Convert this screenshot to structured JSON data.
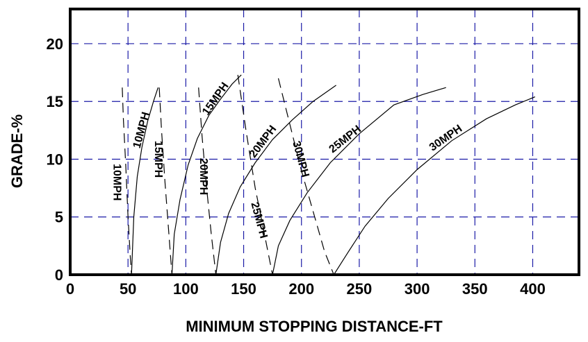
{
  "chart_data": {
    "type": "line",
    "title": "",
    "xlabel": "MINIMUM STOPPING DISTANCE-FT",
    "ylabel": "GRADE-%",
    "xlim": [
      0,
      440
    ],
    "ylim": [
      0,
      23
    ],
    "xticks": [
      0,
      50,
      100,
      150,
      200,
      250,
      300,
      350,
      400
    ],
    "yticks": [
      0,
      5,
      10,
      15,
      20
    ],
    "grid": true,
    "series": [
      {
        "name": "10MPH",
        "style": "dashed",
        "label_at": [
          40,
          8
        ],
        "label_angle": 90,
        "x": [
          45,
          46,
          48,
          50,
          52,
          53
        ],
        "y": [
          16.2,
          13.5,
          9.5,
          5,
          1.5,
          0
        ]
      },
      {
        "name": "10MPH",
        "style": "solid",
        "label_at": [
          62,
          12.5
        ],
        "label_angle": -75,
        "x": [
          53,
          55,
          58,
          62,
          67,
          72,
          76
        ],
        "y": [
          0,
          5,
          8.5,
          11,
          13.3,
          15,
          16.2
        ]
      },
      {
        "name": "15MPH",
        "style": "dashed",
        "label_at": [
          76,
          10
        ],
        "label_angle": 90,
        "x": [
          77,
          79,
          82,
          85,
          88
        ],
        "y": [
          16.2,
          12.5,
          8,
          4,
          0
        ]
      },
      {
        "name": "15MPH",
        "style": "solid",
        "label_at": [
          126,
          15.2
        ],
        "label_angle": -55,
        "x": [
          88,
          90,
          95,
          102,
          110,
          120,
          130,
          140,
          148
        ],
        "y": [
          0,
          3.5,
          6.5,
          9.5,
          11.8,
          13.8,
          15.2,
          16.5,
          17.3
        ]
      },
      {
        "name": "20MPH",
        "style": "dashed",
        "label_at": [
          115,
          8.5
        ],
        "label_angle": 90,
        "x": [
          111,
          114,
          118,
          122,
          126
        ],
        "y": [
          16.2,
          12,
          7.5,
          3.5,
          0
        ]
      },
      {
        "name": "20MPH",
        "style": "solid",
        "label_at": [
          167,
          11.5
        ],
        "label_angle": -53,
        "x": [
          126,
          130,
          137,
          147,
          160,
          175,
          192,
          210,
          230
        ],
        "y": [
          0,
          2.8,
          5.3,
          7.6,
          9.7,
          11.7,
          13.4,
          15,
          16.4
        ]
      },
      {
        "name": "25MPH",
        "style": "dashed",
        "label_at": [
          163,
          4.7
        ],
        "label_angle": 75,
        "x": [
          145,
          152,
          160,
          168,
          175
        ],
        "y": [
          17.3,
          12.5,
          7.5,
          3.5,
          0
        ]
      },
      {
        "name": "25MPH",
        "style": "solid",
        "label_at": [
          238,
          11.7
        ],
        "label_angle": -38,
        "x": [
          175,
          180,
          190,
          205,
          225,
          250,
          280,
          305,
          325
        ],
        "y": [
          0,
          2.5,
          4.7,
          7.1,
          9.7,
          12.2,
          14.7,
          15.6,
          16.2
        ]
      },
      {
        "name": "30MPH",
        "style": "dashed",
        "label_at": [
          199,
          10
        ],
        "label_angle": 75,
        "x": [
          180,
          190,
          200,
          210,
          220,
          228
        ],
        "y": [
          17,
          13,
          9,
          5.5,
          2,
          0
        ]
      },
      {
        "name": "30MPH",
        "style": "solid",
        "label_at": [
          325,
          11.8
        ],
        "label_angle": -35,
        "x": [
          228,
          240,
          255,
          275,
          300,
          330,
          360,
          385,
          402
        ],
        "y": [
          0,
          1.9,
          4.2,
          6.6,
          9.1,
          11.6,
          13.5,
          14.7,
          15.4
        ]
      }
    ]
  }
}
